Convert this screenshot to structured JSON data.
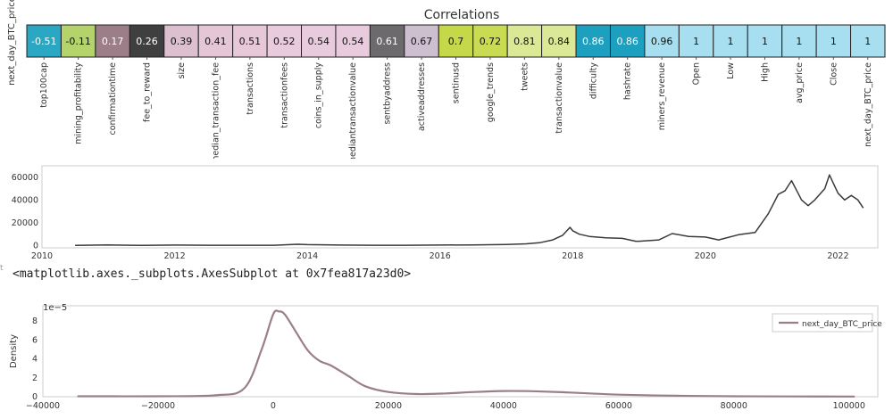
{
  "heatmap": {
    "title": "Correlations",
    "row_label": "next_day_BTC_price",
    "cells": [
      {
        "label": "top100cap",
        "value": -0.51,
        "display": "-0.51",
        "color": "#2aa7c3"
      },
      {
        "label": "mining_profitability",
        "value": -0.11,
        "display": "-0.11",
        "color": "#b5d36b"
      },
      {
        "label": "confirmationtime",
        "value": 0.17,
        "display": "0.17",
        "color": "#9b7e88"
      },
      {
        "label": "fee_to_reward",
        "value": 0.26,
        "display": "0.26",
        "color": "#3f3f3f"
      },
      {
        "label": "size",
        "value": 0.39,
        "display": "0.39",
        "color": "#dcc0d0"
      },
      {
        "label": "median_transaction_fee",
        "value": 0.41,
        "display": "0.41",
        "color": "#e4c6d6"
      },
      {
        "label": "transactions",
        "value": 0.51,
        "display": "0.51",
        "color": "#e6c8d8"
      },
      {
        "label": "transactionfees",
        "value": 0.52,
        "display": "0.52",
        "color": "#e8cbdc"
      },
      {
        "label": "coins_in_supply",
        "value": 0.54,
        "display": "0.54",
        "color": "#e8cbdc"
      },
      {
        "label": "mediantransactionvalue",
        "value": 0.54,
        "display": "0.54",
        "color": "#e8cbdc"
      },
      {
        "label": "sentbyaddress",
        "value": 0.61,
        "display": "0.61",
        "color": "#6d6a6d"
      },
      {
        "label": "activeaddresses",
        "value": 0.67,
        "display": "0.67",
        "color": "#cdbfd0"
      },
      {
        "label": "sentinusd",
        "value": 0.7,
        "display": "0.7",
        "color": "#c5d84a"
      },
      {
        "label": "google_trends",
        "value": 0.72,
        "display": "0.72",
        "color": "#c8db52"
      },
      {
        "label": "tweets",
        "value": 0.81,
        "display": "0.81",
        "color": "#dbe896"
      },
      {
        "label": "transactionvalue",
        "value": 0.84,
        "display": "0.84",
        "color": "#dbe896"
      },
      {
        "label": "difficulty",
        "value": 0.86,
        "display": "0.86",
        "color": "#1d9fbf"
      },
      {
        "label": "hashrate",
        "value": 0.86,
        "display": "0.86",
        "color": "#1d9fbf"
      },
      {
        "label": "miners_revenue",
        "value": 0.96,
        "display": "0.96",
        "color": "#a8dff0"
      },
      {
        "label": "Open",
        "value": 1,
        "display": "1",
        "color": "#a8dff0"
      },
      {
        "label": "Low",
        "value": 1,
        "display": "1",
        "color": "#a8dff0"
      },
      {
        "label": "High",
        "value": 1,
        "display": "1",
        "color": "#a8dff0"
      },
      {
        "label": "avg_price",
        "value": 1,
        "display": "1",
        "color": "#a8dff0"
      },
      {
        "label": "Close",
        "value": 1,
        "display": "1",
        "color": "#a8dff0"
      },
      {
        "label": "next_day_BTC_price",
        "value": 1,
        "display": "1",
        "color": "#a8dff0"
      }
    ]
  },
  "repr_text": "<matplotlib.axes._subplots.AxesSubplot at 0x7fea817a23d0>",
  "edge_mark": "t",
  "chart_data": [
    {
      "type": "heatmap",
      "title": "Correlations",
      "row": "next_day_BTC_price",
      "columns": [
        "top100cap",
        "mining_profitability",
        "confirmationtime",
        "fee_to_reward",
        "size",
        "median_transaction_fee",
        "transactions",
        "transactionfees",
        "coins_in_supply",
        "mediantransactionvalue",
        "sentbyaddress",
        "activeaddresses",
        "sentinusd",
        "google_trends",
        "tweets",
        "transactionvalue",
        "difficulty",
        "hashrate",
        "miners_revenue",
        "Open",
        "Low",
        "High",
        "avg_price",
        "Close",
        "next_day_BTC_price"
      ],
      "values": [
        -0.51,
        -0.11,
        0.17,
        0.26,
        0.39,
        0.41,
        0.51,
        0.52,
        0.54,
        0.54,
        0.61,
        0.67,
        0.7,
        0.72,
        0.81,
        0.84,
        0.86,
        0.86,
        0.96,
        1,
        1,
        1,
        1,
        1,
        1
      ]
    },
    {
      "type": "line",
      "series_name": "next_day_BTC_price",
      "color": "#3a3a3a",
      "xlim": [
        2010.0,
        2022.6
      ],
      "ylim": [
        -2000,
        70000
      ],
      "xticks": [
        2010,
        2012,
        2014,
        2016,
        2018,
        2020,
        2022
      ],
      "yticks": [
        0,
        20000,
        40000,
        60000
      ],
      "x": [
        2010.5,
        2011.0,
        2011.5,
        2012.0,
        2012.5,
        2013.0,
        2013.5,
        2013.85,
        2014.0,
        2014.5,
        2015.0,
        2015.5,
        2016.0,
        2016.5,
        2017.0,
        2017.3,
        2017.5,
        2017.7,
        2017.85,
        2017.96,
        2018.0,
        2018.1,
        2018.25,
        2018.5,
        2018.75,
        2018.95,
        2019.0,
        2019.3,
        2019.5,
        2019.75,
        2020.0,
        2020.2,
        2020.5,
        2020.75,
        2020.95,
        2021.1,
        2021.2,
        2021.3,
        2021.45,
        2021.55,
        2021.65,
        2021.8,
        2021.87,
        2022.0,
        2022.1,
        2022.2,
        2022.3,
        2022.38
      ],
      "y": [
        100,
        500,
        150,
        400,
        300,
        300,
        250,
        1100,
        800,
        450,
        250,
        300,
        400,
        600,
        1000,
        1500,
        2500,
        5000,
        9000,
        16000,
        13000,
        10000,
        8000,
        6800,
        6300,
        3800,
        3800,
        5000,
        10500,
        8000,
        7500,
        5000,
        9500,
        11500,
        28000,
        45000,
        48000,
        57000,
        40000,
        35000,
        40000,
        50000,
        62000,
        46000,
        40000,
        44000,
        40000,
        33000
      ]
    },
    {
      "type": "area",
      "subtype": "kde",
      "ylabel": "Density",
      "y_scale_label": "1e−5",
      "legend": [
        "next_day_BTC_price"
      ],
      "legend_position": "top-right",
      "color": "#9a7f8a",
      "xlim": [
        -40000,
        105000
      ],
      "ylim": [
        0,
        9.6
      ],
      "xticks": [
        -40000,
        -20000,
        0,
        20000,
        40000,
        60000,
        80000,
        100000
      ],
      "yticks": [
        0,
        2,
        4,
        6,
        8
      ],
      "x": [
        -34000,
        -20000,
        -10000,
        -5000,
        -2000,
        0,
        1000,
        2000,
        4000,
        6000,
        8000,
        10000,
        13000,
        16000,
        20000,
        25000,
        30000,
        35000,
        40000,
        45000,
        50000,
        55000,
        60000,
        70000,
        80000,
        90000,
        101000
      ],
      "y": [
        0.05,
        0.05,
        0.15,
        0.9,
        5.0,
        8.7,
        9.0,
        8.7,
        6.8,
        4.9,
        3.8,
        3.3,
        2.2,
        1.1,
        0.5,
        0.28,
        0.35,
        0.5,
        0.6,
        0.58,
        0.48,
        0.35,
        0.22,
        0.1,
        0.05,
        0.03,
        0.02
      ]
    }
  ]
}
